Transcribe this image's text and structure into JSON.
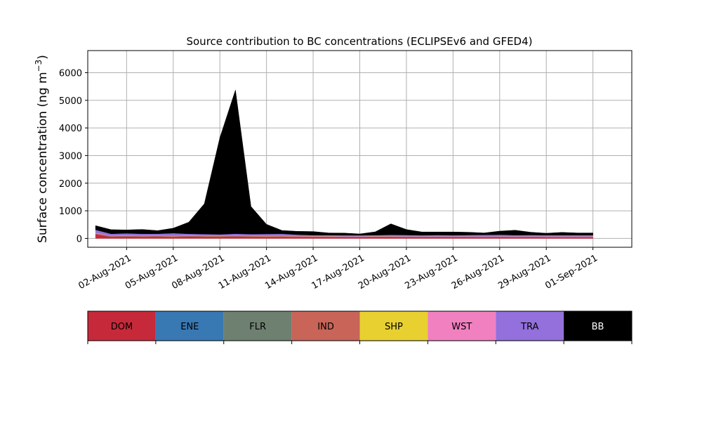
{
  "chart_data": {
    "type": "area",
    "title": "Source contribution to BC concentrations (ECLIPSEv6 and GFED4)",
    "ylabel_main": "Surface concentration (ng m",
    "ylabel_sup": "−3",
    "ylabel_close": ")",
    "xlabel": "",
    "x_start": "2021-07-31",
    "x_end": "2021-09-04",
    "xlim": [
      "2021-07-30T12:00",
      "2021-09-03T12:00"
    ],
    "ylim": [
      -320,
      6800
    ],
    "grid": true,
    "x_ticks": [
      {
        "date": "2021-08-02",
        "label": "02-Aug-2021"
      },
      {
        "date": "2021-08-05",
        "label": "05-Aug-2021"
      },
      {
        "date": "2021-08-08",
        "label": "08-Aug-2021"
      },
      {
        "date": "2021-08-11",
        "label": "11-Aug-2021"
      },
      {
        "date": "2021-08-14",
        "label": "14-Aug-2021"
      },
      {
        "date": "2021-08-17",
        "label": "17-Aug-2021"
      },
      {
        "date": "2021-08-20",
        "label": "20-Aug-2021"
      },
      {
        "date": "2021-08-23",
        "label": "23-Aug-2021"
      },
      {
        "date": "2021-08-26",
        "label": "26-Aug-2021"
      },
      {
        "date": "2021-08-29",
        "label": "29-Aug-2021"
      },
      {
        "date": "2021-09-01",
        "label": "01-Sep-2021"
      }
    ],
    "y_ticks": [
      {
        "value": 0,
        "label": "0"
      },
      {
        "value": 1000,
        "label": "1000"
      },
      {
        "value": 2000,
        "label": "2000"
      },
      {
        "value": 3000,
        "label": "3000"
      },
      {
        "value": 4000,
        "label": "4000"
      },
      {
        "value": 5000,
        "label": "5000"
      },
      {
        "value": 6000,
        "label": "6000"
      }
    ],
    "dates": [
      "2021-07-31",
      "2021-08-01",
      "2021-08-02",
      "2021-08-03",
      "2021-08-04",
      "2021-08-05",
      "2021-08-06",
      "2021-08-07",
      "2021-08-08",
      "2021-08-09",
      "2021-08-10",
      "2021-08-11",
      "2021-08-12",
      "2021-08-13",
      "2021-08-14",
      "2021-08-15",
      "2021-08-16",
      "2021-08-17",
      "2021-08-18",
      "2021-08-19",
      "2021-08-20",
      "2021-08-21",
      "2021-08-22",
      "2021-08-23",
      "2021-08-24",
      "2021-08-25",
      "2021-08-26",
      "2021-08-27",
      "2021-08-28",
      "2021-08-29",
      "2021-08-30",
      "2021-08-31",
      "2021-09-01"
    ],
    "series": [
      {
        "name": "DOM",
        "color": "#c62a3a",
        "values": [
          150,
          60,
          70,
          60,
          65,
          55,
          70,
          60,
          60,
          65,
          60,
          55,
          60,
          50,
          50,
          50,
          45,
          45,
          50,
          50,
          45,
          45,
          45,
          45,
          45,
          40,
          45,
          40,
          45,
          40,
          40,
          40,
          40
        ]
      },
      {
        "name": "ENE",
        "color": "#3878b3",
        "values": [
          5,
          5,
          5,
          5,
          5,
          5,
          5,
          5,
          5,
          5,
          5,
          5,
          5,
          5,
          5,
          5,
          5,
          5,
          5,
          5,
          5,
          5,
          5,
          5,
          5,
          5,
          5,
          5,
          5,
          5,
          5,
          5,
          5
        ]
      },
      {
        "name": "FLR",
        "color": "#6e8070",
        "values": [
          5,
          5,
          5,
          5,
          5,
          5,
          5,
          5,
          5,
          5,
          5,
          5,
          5,
          5,
          5,
          5,
          5,
          5,
          5,
          5,
          5,
          5,
          5,
          5,
          5,
          5,
          5,
          5,
          5,
          5,
          5,
          5,
          5
        ]
      },
      {
        "name": "IND",
        "color": "#c86558",
        "values": [
          30,
          20,
          20,
          20,
          20,
          20,
          20,
          20,
          20,
          20,
          20,
          20,
          20,
          20,
          15,
          15,
          15,
          15,
          15,
          15,
          15,
          15,
          15,
          15,
          15,
          15,
          15,
          15,
          15,
          15,
          15,
          15,
          15
        ]
      },
      {
        "name": "SHP",
        "color": "#e8d030",
        "values": [
          2,
          2,
          2,
          2,
          2,
          2,
          2,
          2,
          2,
          2,
          2,
          2,
          2,
          2,
          2,
          2,
          2,
          2,
          2,
          2,
          2,
          2,
          2,
          2,
          2,
          2,
          2,
          2,
          2,
          2,
          2,
          2,
          2
        ]
      },
      {
        "name": "WST",
        "color": "#f080c0",
        "values": [
          20,
          15,
          15,
          15,
          15,
          15,
          15,
          15,
          15,
          15,
          15,
          15,
          15,
          15,
          12,
          12,
          12,
          12,
          12,
          12,
          12,
          12,
          12,
          12,
          12,
          12,
          12,
          12,
          12,
          12,
          12,
          12,
          12
        ]
      },
      {
        "name": "TRA",
        "color": "#9370db",
        "values": [
          100,
          60,
          70,
          60,
          60,
          90,
          50,
          50,
          40,
          60,
          50,
          60,
          60,
          40,
          30,
          30,
          30,
          30,
          30,
          40,
          40,
          30,
          40,
          30,
          40,
          50,
          50,
          40,
          40,
          40,
          40,
          40,
          40
        ]
      },
      {
        "name": "BB",
        "color": "#000000",
        "values": [
          150,
          150,
          120,
          160,
          110,
          180,
          420,
          1100,
          3500,
          5200,
          1000,
          350,
          120,
          120,
          130,
          80,
          80,
          50,
          120,
          400,
          200,
          120,
          110,
          120,
          100,
          70,
          130,
          180,
          100,
          70,
          100,
          80,
          80
        ]
      }
    ]
  }
}
